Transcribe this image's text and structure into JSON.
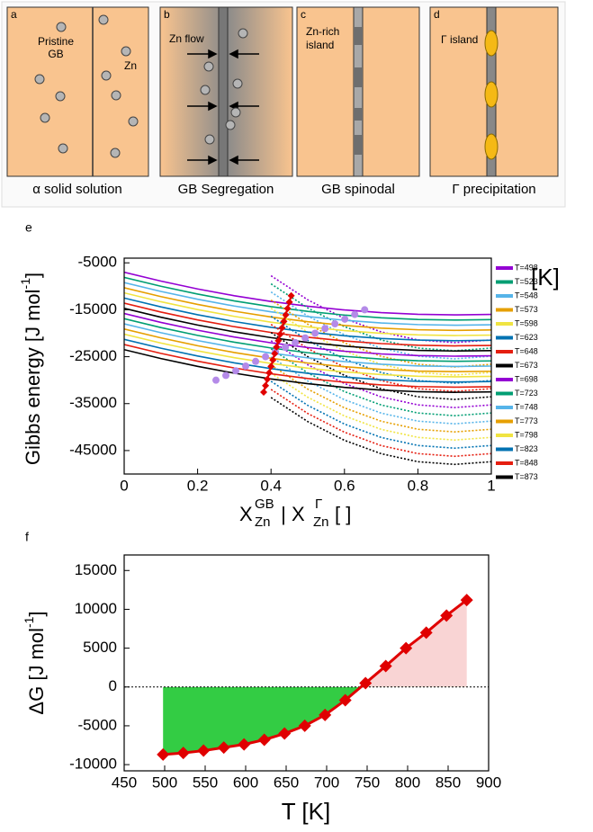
{
  "schematic": {
    "panels": [
      {
        "label": "a",
        "caption": "α solid solution",
        "texts": [
          "Pristine",
          "GB",
          "Zn"
        ]
      },
      {
        "label": "b",
        "caption": "GB Segregation",
        "texts": [
          "Zn flow"
        ]
      },
      {
        "label": "c",
        "caption": "GB spinodal",
        "texts": [
          "Zn-rich",
          "island"
        ]
      },
      {
        "label": "d",
        "caption": "Γ precipitation",
        "texts": [
          "Γ island"
        ]
      }
    ]
  },
  "chart_data": [
    {
      "type": "line",
      "label": "e",
      "ylabel": [
        "Gibbs energy [J mol",
        "-1",
        "]"
      ],
      "xlabel": [
        "X",
        "GB",
        "Zn",
        " | X",
        "Γ",
        "Zn",
        "[ ]"
      ],
      "legend_unit": "[K]",
      "xlim": [
        0,
        1
      ],
      "xticks": [
        0,
        0.2,
        0.4,
        0.6,
        0.8,
        1
      ],
      "ylim": [
        -50000,
        -4000
      ],
      "yticks": [
        -5000,
        -15000,
        -25000,
        -35000,
        -45000
      ],
      "x": [
        0,
        0.1,
        0.2,
        0.3,
        0.4,
        0.5,
        0.6,
        0.7,
        0.8,
        0.9,
        1
      ],
      "x_gamma": [
        0.4,
        0.5,
        0.6,
        0.7,
        0.8,
        0.9,
        1
      ],
      "series": [
        {
          "name": "T=498",
          "color": "#9400d3",
          "values": [
            -7000,
            -8890,
            -10560,
            -12010,
            -13240,
            -14250,
            -15040,
            -15610,
            -15960,
            -16090,
            -16000
          ],
          "gamma_values": [
            -7750,
            -12880,
            -16870,
            -19720,
            -21430,
            -22000,
            -21430
          ]
        },
        {
          "name": "T=523",
          "color": "#009e73",
          "values": [
            -8100,
            -9990,
            -11660,
            -13110,
            -14340,
            -15350,
            -16140,
            -16710,
            -17060,
            -17190,
            -17100
          ],
          "gamma_values": [
            -9480,
            -14610,
            -18600,
            -21450,
            -23160,
            -23730,
            -23160
          ]
        },
        {
          "name": "T=548",
          "color": "#56b4e9",
          "values": [
            -9200,
            -11090,
            -12760,
            -14210,
            -15440,
            -16450,
            -17240,
            -17810,
            -18160,
            -18290,
            -18200
          ],
          "gamma_values": [
            -11210,
            -16340,
            -20330,
            -23180,
            -24890,
            -25460,
            -24890
          ]
        },
        {
          "name": "T=573",
          "color": "#e69f00",
          "values": [
            -10300,
            -12190,
            -13860,
            -15310,
            -16540,
            -17550,
            -18340,
            -18910,
            -19260,
            -19390,
            -19300
          ],
          "gamma_values": [
            -12940,
            -18070,
            -22060,
            -24910,
            -26620,
            -27190,
            -26620
          ]
        },
        {
          "name": "T=598",
          "color": "#f0e442",
          "values": [
            -11400,
            -13290,
            -14960,
            -16410,
            -17640,
            -18650,
            -19440,
            -20010,
            -20360,
            -20490,
            -20400
          ],
          "gamma_values": [
            -14670,
            -19800,
            -23790,
            -26640,
            -28350,
            -28920,
            -28350
          ]
        },
        {
          "name": "T=623",
          "color": "#0072b2",
          "values": [
            -12500,
            -14390,
            -16060,
            -17510,
            -18740,
            -19750,
            -20540,
            -21110,
            -21460,
            -21590,
            -21500
          ],
          "gamma_values": [
            -16400,
            -21530,
            -25520,
            -28370,
            -30080,
            -30650,
            -30080
          ]
        },
        {
          "name": "T=648",
          "color": "#e51e10",
          "values": [
            -13600,
            -15490,
            -17160,
            -18610,
            -19840,
            -20850,
            -21640,
            -22210,
            -22560,
            -22690,
            -22600
          ],
          "gamma_values": [
            -18130,
            -23260,
            -27250,
            -30100,
            -31810,
            -32380,
            -31810
          ]
        },
        {
          "name": "T=673",
          "color": "#000000",
          "values": [
            -14700,
            -16590,
            -18260,
            -19710,
            -20940,
            -21950,
            -22740,
            -23310,
            -23660,
            -23790,
            -23700
          ],
          "gamma_values": [
            -19860,
            -24990,
            -28980,
            -31830,
            -33540,
            -34110,
            -33540
          ]
        },
        {
          "name": "T=698",
          "color": "#9400d3",
          "values": [
            -15800,
            -17690,
            -19360,
            -20810,
            -22040,
            -23050,
            -23840,
            -24410,
            -24760,
            -24890,
            -24800
          ],
          "gamma_values": [
            -21590,
            -26720,
            -30710,
            -33560,
            -35270,
            -35840,
            -35270
          ]
        },
        {
          "name": "T=723",
          "color": "#009e73",
          "values": [
            -16900,
            -18790,
            -20460,
            -21910,
            -23140,
            -24150,
            -24940,
            -25510,
            -25860,
            -25990,
            -25900
          ],
          "gamma_values": [
            -23320,
            -28450,
            -32440,
            -35290,
            -37000,
            -37570,
            -37000
          ]
        },
        {
          "name": "T=748",
          "color": "#56b4e9",
          "values": [
            -18000,
            -19890,
            -21560,
            -23010,
            -24240,
            -25250,
            -26040,
            -26610,
            -26960,
            -27090,
            -27000
          ],
          "gamma_values": [
            -25050,
            -30180,
            -34170,
            -37020,
            -38730,
            -39300,
            -38730
          ]
        },
        {
          "name": "T=773",
          "color": "#e69f00",
          "values": [
            -19100,
            -20990,
            -22660,
            -24110,
            -25340,
            -26350,
            -27140,
            -27710,
            -28060,
            -28190,
            -28100
          ],
          "gamma_values": [
            -26780,
            -31910,
            -35900,
            -38750,
            -40460,
            -41030,
            -40460
          ]
        },
        {
          "name": "T=798",
          "color": "#f0e442",
          "values": [
            -20200,
            -22090,
            -23760,
            -25210,
            -26440,
            -27450,
            -28240,
            -28810,
            -29160,
            -29290,
            -29200
          ],
          "gamma_values": [
            -28510,
            -33640,
            -37630,
            -40480,
            -42190,
            -42760,
            -42190
          ]
        },
        {
          "name": "T=823",
          "color": "#0072b2",
          "values": [
            -21300,
            -23190,
            -24860,
            -26310,
            -27540,
            -28550,
            -29340,
            -29910,
            -30260,
            -30390,
            -30300
          ],
          "gamma_values": [
            -30240,
            -35370,
            -39360,
            -42210,
            -43920,
            -44490,
            -43920
          ]
        },
        {
          "name": "T=848",
          "color": "#e51e10",
          "values": [
            -22400,
            -24290,
            -25960,
            -27410,
            -28640,
            -29650,
            -30440,
            -31010,
            -31360,
            -31490,
            -31400
          ],
          "gamma_values": [
            -31970,
            -37100,
            -41090,
            -43940,
            -45650,
            -46220,
            -45650
          ]
        },
        {
          "name": "T=873",
          "color": "#000000",
          "values": [
            -23500,
            -25390,
            -27060,
            -28510,
            -29740,
            -30750,
            -31540,
            -32110,
            -32460,
            -32590,
            -32500
          ],
          "gamma_values": [
            -33700,
            -38830,
            -42820,
            -45670,
            -47380,
            -47950,
            -47380
          ]
        }
      ],
      "tangent_points": {
        "color": "#e00000",
        "x": [
          0.455,
          0.45,
          0.445,
          0.44,
          0.435,
          0.43,
          0.425,
          0.42,
          0.415,
          0.41,
          0.405,
          0.4,
          0.395,
          0.39,
          0.385,
          0.38
        ],
        "values": [
          -12000,
          -13370,
          -14740,
          -16110,
          -17480,
          -18850,
          -20220,
          -21590,
          -22960,
          -24330,
          -25700,
          -27070,
          -28440,
          -29810,
          -31180,
          -32550
        ]
      },
      "min_points": {
        "color": "#b48ae8",
        "x": [
          0.655,
          0.628,
          0.601,
          0.574,
          0.547,
          0.52,
          0.493,
          0.466,
          0.439,
          0.412,
          0.385,
          0.358,
          0.331,
          0.304,
          0.277,
          0.25
        ],
        "values": [
          -15000,
          -16000,
          -17000,
          -18000,
          -19000,
          -20000,
          -21000,
          -22000,
          -23000,
          -24000,
          -25000,
          -26000,
          -27000,
          -28000,
          -29000,
          -30000
        ]
      }
    },
    {
      "type": "line",
      "label": "f",
      "ylabel": [
        "ΔG [J mol",
        "-1",
        "]"
      ],
      "xlabel": "T [K]",
      "xlim": [
        450,
        900
      ],
      "xticks": [
        450,
        500,
        550,
        600,
        650,
        700,
        750,
        800,
        850,
        900
      ],
      "ylim": [
        -10800,
        17000
      ],
      "yticks": [
        -10000,
        -5000,
        0,
        5000,
        10000,
        15000
      ],
      "x": [
        498,
        523,
        548,
        573,
        598,
        623,
        648,
        673,
        698,
        723,
        748,
        773,
        798,
        823,
        848,
        873
      ],
      "values": [
        -8700,
        -8500,
        -8200,
        -7800,
        -7400,
        -6800,
        -6000,
        -5000,
        -3600,
        -1700,
        500,
        2700,
        5000,
        7000,
        9200,
        11200
      ],
      "color": "#e00000",
      "fill_negative": "#33cc44",
      "fill_positive": "#f9d4d4",
      "zero_line": true
    }
  ]
}
